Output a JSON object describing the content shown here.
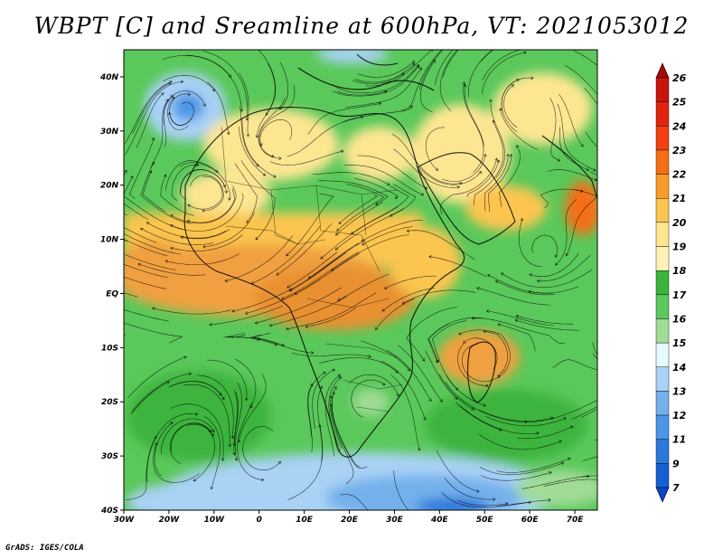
{
  "title": "WBPT [C] and Sreamline at 600hPa, VT: 2021053012",
  "credit": "GrADS: IGES/COLA",
  "map": {
    "lon_range": [
      -30,
      75
    ],
    "lat_range": [
      -40,
      45
    ],
    "lon_ticks": [
      "30W",
      "20W",
      "10W",
      "0",
      "10E",
      "20E",
      "30E",
      "40E",
      "50E",
      "60E",
      "70E"
    ],
    "lat_ticks": [
      "40N",
      "30N",
      "20N",
      "10N",
      "EQ",
      "10S",
      "20S",
      "30S",
      "40S"
    ]
  },
  "colorbar": {
    "labels": [
      "26",
      "25",
      "24",
      "23",
      "22",
      "21",
      "20",
      "19",
      "18",
      "17",
      "16",
      "15",
      "14",
      "13",
      "12",
      "11",
      "9",
      "7"
    ],
    "colors": [
      "#a50a0a",
      "#c8140a",
      "#e1230f",
      "#f0410f",
      "#f56e14",
      "#f79b28",
      "#fbc550",
      "#fde692",
      "#fff2b4",
      "#3cb43c",
      "#5ac85a",
      "#a0dc96",
      "#e6faff",
      "#a9d2f5",
      "#73b0ec",
      "#4b96e6",
      "#2a78dc",
      "#1460d2",
      "#0a46c8"
    ]
  },
  "regions": [
    {
      "name": "warm-band-equator",
      "color": "#f0a040"
    },
    {
      "name": "sahara-warm",
      "color": "#fde692"
    },
    {
      "name": "arabia-warm",
      "color": "#fde692"
    },
    {
      "name": "southern-ocean-cool",
      "color": "#73b0ec"
    }
  ]
}
